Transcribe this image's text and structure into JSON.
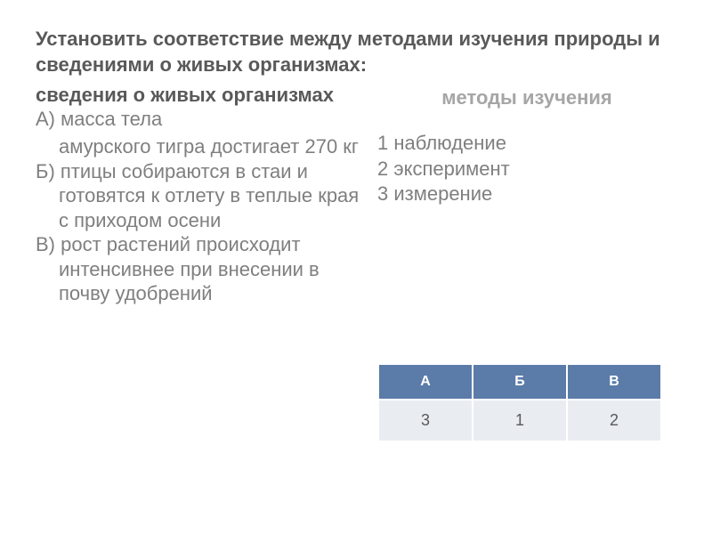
{
  "title": "Установить соответствие между методами изучения природы и сведениями о живых организмах:",
  "factsHeading": "сведения о живых организмах",
  "methodsHeading": "методы изучения",
  "factA_line1": "А) масса тела",
  "factA_cont": "амурского тигра достигает 270 кг",
  "factB": "Б) птицы собираются в стаи и готовятся к отлету в теплые края с приходом осени",
  "factC": "В) рост растений происходит интенсивнее при внесении в почву удобрений",
  "method1": "1 наблюдение",
  "method2": "2 эксперимент",
  "method3": "3 измерение",
  "table": {
    "headers": [
      "А",
      "Б",
      "В"
    ],
    "row": [
      "3",
      "1",
      "2"
    ],
    "header_bg": "#5b7ca8",
    "header_color": "#ffffff",
    "cell_bg": "#e9edf2",
    "cell_color": "#595959",
    "border_color": "#ffffff",
    "header_fontsize": 16,
    "cell_fontsize": 18
  },
  "colors": {
    "title": "#595959",
    "body_text": "#7f7f7f",
    "methods_heading": "#a6a6a6",
    "background": "#ffffff"
  }
}
